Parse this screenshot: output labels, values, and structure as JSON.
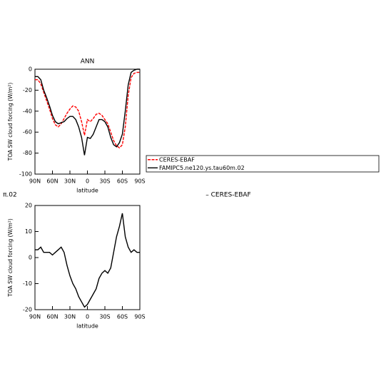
{
  "chart_data": [
    {
      "type": "line",
      "title": "ANN",
      "x_label": "latitude",
      "y_label": "TOA SW cloud forcing (W/m²)",
      "x": [
        90,
        85,
        80,
        75,
        70,
        65,
        60,
        55,
        50,
        45,
        40,
        35,
        30,
        25,
        20,
        15,
        10,
        5,
        0,
        -5,
        -10,
        -15,
        -20,
        -25,
        -30,
        -35,
        -40,
        -45,
        -50,
        -55,
        -60,
        -65,
        -70,
        -75,
        -80,
        -85,
        -90
      ],
      "series": [
        {
          "name": "CERES-EBAF",
          "color": "#ff0000",
          "dash": true,
          "values": [
            -10,
            -10,
            -14,
            -22,
            -30,
            -38,
            -47,
            -53,
            -55,
            -52,
            -47,
            -42,
            -38,
            -35,
            -36,
            -40,
            -50,
            -63,
            -48,
            -50,
            -47,
            -43,
            -42,
            -44,
            -48,
            -52,
            -60,
            -68,
            -73,
            -75,
            -72,
            -55,
            -25,
            -8,
            -4,
            -3,
            -3
          ]
        },
        {
          "name": "FAMIPC5.ne120.ys.tau60m.02",
          "color": "#000000",
          "dash": false,
          "values": [
            -7,
            -7,
            -10,
            -20,
            -27,
            -35,
            -44,
            -50,
            -52,
            -51,
            -50,
            -47,
            -45,
            -45,
            -48,
            -55,
            -65,
            -82,
            -65,
            -66,
            -62,
            -55,
            -48,
            -48,
            -50,
            -55,
            -65,
            -72,
            -74,
            -70,
            -62,
            -40,
            -15,
            -3,
            -1,
            0,
            0
          ]
        }
      ],
      "xlim": [
        90,
        -90
      ],
      "xticks": [
        {
          "value": 90,
          "label": "90N"
        },
        {
          "value": 60,
          "label": "60N"
        },
        {
          "value": 30,
          "label": "30N"
        },
        0,
        {
          "value": -30,
          "label": "30S"
        },
        {
          "value": -60,
          "label": "60S"
        },
        {
          "value": -90,
          "label": "90S"
        }
      ],
      "ylim": [
        -100,
        0
      ],
      "yticks": [
        0,
        -20,
        -40,
        -60,
        -80,
        -100
      ]
    },
    {
      "type": "line",
      "left_label": "π.02",
      "title": "– CERES-EBAF",
      "x_label": "latitude",
      "y_label": "TOA SW cloud forcing (W/m²)",
      "x": [
        90,
        85,
        80,
        75,
        70,
        65,
        60,
        55,
        50,
        45,
        40,
        35,
        30,
        25,
        20,
        15,
        10,
        5,
        0,
        -5,
        -10,
        -15,
        -20,
        -25,
        -30,
        -35,
        -40,
        -45,
        -50,
        -55,
        -60,
        -65,
        -70,
        -75,
        -80,
        -85,
        -90
      ],
      "series": [
        {
          "color": "#000000",
          "dash": false,
          "values": [
            3,
            3,
            4,
            2,
            2,
            2,
            1,
            2,
            3,
            4,
            2,
            -3,
            -7,
            -10,
            -12,
            -15,
            -17,
            -19,
            -18,
            -16,
            -14,
            -12,
            -8,
            -6,
            -5,
            -6,
            -4,
            2,
            8,
            12,
            17,
            8,
            4,
            2,
            3,
            2,
            2
          ]
        }
      ],
      "xlim": [
        90,
        -90
      ],
      "xticks": [
        {
          "value": 90,
          "label": "90N"
        },
        {
          "value": 60,
          "label": "60N"
        },
        {
          "value": 30,
          "label": "30N"
        },
        0,
        {
          "value": -30,
          "label": "30S"
        },
        {
          "value": -60,
          "label": "60S"
        },
        {
          "value": -90,
          "label": "90S"
        }
      ],
      "ylim": [
        -20,
        20
      ],
      "yticks": [
        20,
        10,
        0,
        -10,
        -20
      ]
    }
  ]
}
